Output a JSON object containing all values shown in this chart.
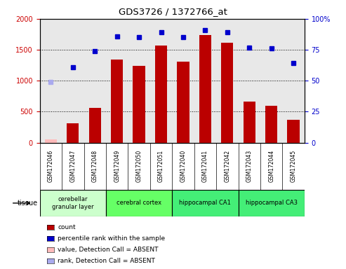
{
  "title": "GDS3726 / 1372766_at",
  "samples": [
    "GSM172046",
    "GSM172047",
    "GSM172048",
    "GSM172049",
    "GSM172050",
    "GSM172051",
    "GSM172040",
    "GSM172041",
    "GSM172042",
    "GSM172043",
    "GSM172044",
    "GSM172045"
  ],
  "count_values": [
    50,
    310,
    560,
    1340,
    1240,
    1570,
    1310,
    1740,
    1610,
    660,
    590,
    370
  ],
  "count_absent": [
    true,
    false,
    false,
    false,
    false,
    false,
    false,
    false,
    false,
    false,
    false,
    false
  ],
  "rank_values": [
    49,
    61,
    74,
    86,
    85,
    89,
    85,
    91,
    89,
    77,
    76,
    64
  ],
  "rank_absent": [
    true,
    false,
    false,
    false,
    false,
    false,
    false,
    false,
    false,
    false,
    false,
    false
  ],
  "ylim_left": [
    0,
    2000
  ],
  "ylim_right": [
    0,
    100
  ],
  "yticks_left": [
    0,
    500,
    1000,
    1500,
    2000
  ],
  "yticks_right": [
    0,
    25,
    50,
    75,
    100
  ],
  "ytick_right_labels": [
    "0",
    "25",
    "50",
    "75",
    "100%"
  ],
  "tissues": [
    {
      "label": "cerebellar\ngranular layer",
      "start": 0,
      "end": 3,
      "color": "#ccffcc"
    },
    {
      "label": "cerebral cortex",
      "start": 3,
      "end": 6,
      "color": "#66ff66"
    },
    {
      "label": "hippocampal CA1",
      "start": 6,
      "end": 9,
      "color": "#44ee77"
    },
    {
      "label": "hippocampal CA3",
      "start": 9,
      "end": 12,
      "color": "#44ee77"
    }
  ],
  "bar_color_normal": "#bb0000",
  "bar_color_absent": "#ffbbbb",
  "rank_color_normal": "#0000cc",
  "rank_color_absent": "#aaaaee",
  "bar_width": 0.55,
  "bg_color": "#ffffff",
  "plot_bg_color": "#e8e8e8",
  "xlabels_bg": "#cccccc",
  "legend_items": [
    {
      "label": "count",
      "color": "#bb0000"
    },
    {
      "label": "percentile rank within the sample",
      "color": "#0000cc"
    },
    {
      "label": "value, Detection Call = ABSENT",
      "color": "#ffbbbb"
    },
    {
      "label": "rank, Detection Call = ABSENT",
      "color": "#aaaaee"
    }
  ],
  "tissue_label": "tissue"
}
